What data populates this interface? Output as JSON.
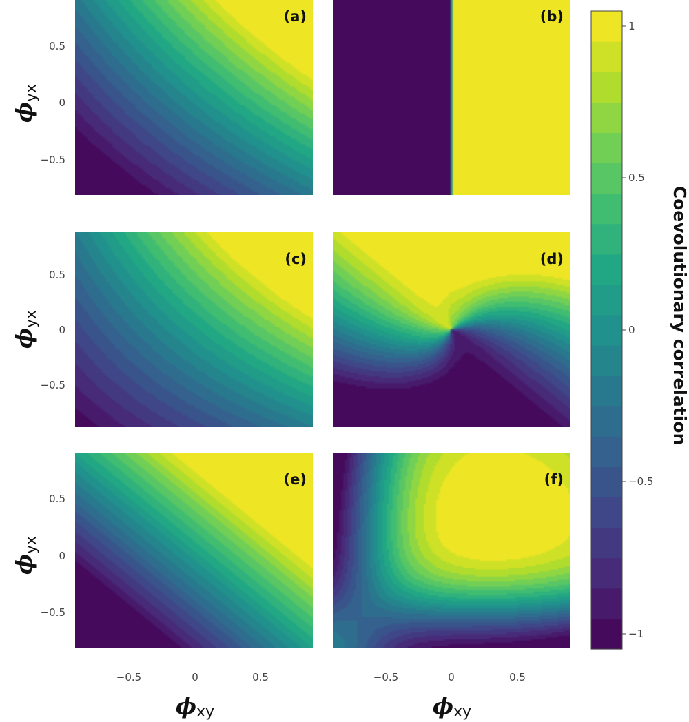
{
  "chart_data": {
    "type": "heatmap",
    "layout": "3 rows x 2 columns of filled contour panels sharing axes",
    "x_ticks": [
      "−0.5",
      "0",
      "0.5"
    ],
    "y_ticks": [
      "0.5",
      "0",
      "−0.5"
    ],
    "x_range": [
      -0.9,
      0.9
    ],
    "y_range": [
      -0.9,
      0.9
    ],
    "xlabel": {
      "symbol": "ϕ",
      "subscript": "xy"
    },
    "ylabel": {
      "symbol": "ϕ",
      "subscript": "yx"
    },
    "colorbar": {
      "title": "Coevolutionary correlation",
      "range": [
        -1.05,
        1.05
      ],
      "ticks": [
        "1",
        "0.5",
        "0",
        "−0.5",
        "−1"
      ],
      "levels": 21,
      "colormap": "viridis"
    },
    "panels": [
      {
        "label": "(a)"
      },
      {
        "label": "(b)"
      },
      {
        "label": "(c)"
      },
      {
        "label": "(d)"
      },
      {
        "label": "(e)"
      },
      {
        "label": "(f)"
      }
    ]
  }
}
